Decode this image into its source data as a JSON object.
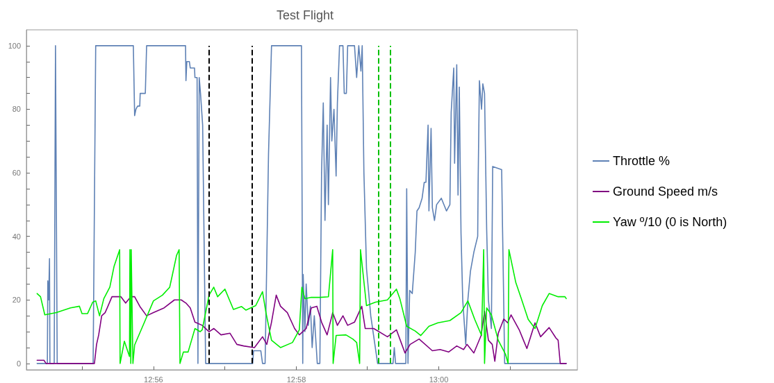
{
  "chart_data": {
    "type": "line",
    "title": "Test Flight",
    "xlim": [
      12.9036,
      13.0324
    ],
    "ylim": [
      -2,
      105
    ],
    "xticks": [
      {
        "value": 12.9167,
        "label": null
      },
      {
        "value": 12.9333,
        "label": "12:56"
      },
      {
        "value": 12.95,
        "label": null
      },
      {
        "value": 12.9667,
        "label": "12:58"
      },
      {
        "value": 12.9833,
        "label": null
      },
      {
        "value": 13.0,
        "label": "13:00"
      },
      {
        "value": 13.0167,
        "label": null
      }
    ],
    "yticks": [
      0,
      {
        "value": 5,
        "label": null
      },
      {
        "value": 10,
        "label": null
      },
      {
        "value": 15,
        "label": null
      },
      20,
      {
        "value": 25,
        "label": null
      },
      {
        "value": 30,
        "label": null
      },
      {
        "value": 35,
        "label": null
      },
      40,
      {
        "value": 45,
        "label": null
      },
      {
        "value": 50,
        "label": null
      },
      {
        "value": 55,
        "label": null
      },
      60,
      {
        "value": 65,
        "label": null
      },
      {
        "value": 70,
        "label": null
      },
      {
        "value": 75,
        "label": null
      },
      80,
      {
        "value": 85,
        "label": null
      },
      {
        "value": 90,
        "label": null
      },
      {
        "value": 95,
        "label": null
      },
      100
    ],
    "grid": false,
    "legend": "right",
    "marker": "none",
    "line_style": "solid",
    "ref_lines": [
      {
        "axis": "x",
        "value": 12.9463,
        "label": null,
        "color": "#000000",
        "line_style": "dashed"
      },
      {
        "axis": "x",
        "value": 12.9563,
        "label": null,
        "color": "#000000",
        "line_style": "dashed"
      },
      {
        "axis": "x",
        "value": 12.9859,
        "label": null,
        "color": "#00c000",
        "line_style": "dashed"
      },
      {
        "axis": "x",
        "value": 12.9886,
        "label": null,
        "color": "#00c000",
        "line_style": "dashed"
      }
    ],
    "series": [
      {
        "name": "Throttle %",
        "color": "#5e81b5",
        "x": [
          12.9061,
          12.9085,
          12.9086,
          12.9088,
          12.909,
          12.9091,
          12.9101,
          12.9104,
          12.9108,
          12.9192,
          12.9198,
          12.9286,
          12.9289,
          12.9292,
          12.9296,
          12.9301,
          12.9302,
          12.9314,
          12.9317,
          12.9408,
          12.9409,
          12.9411,
          12.9417,
          12.9419,
          12.9429,
          12.943,
          12.9435,
          12.9437,
          12.944,
          12.9443,
          12.9448,
          12.9455,
          12.9565,
          12.9567,
          12.9584,
          12.9588,
          12.9594,
          12.9602,
          12.9609,
          12.9679,
          12.9682,
          12.9683,
          12.9687,
          12.969,
          12.9695,
          12.97,
          12.9704,
          12.9709,
          12.9716,
          12.9722,
          12.9726,
          12.973,
          12.9734,
          12.9739,
          12.9742,
          12.9747,
          12.975,
          12.9755,
          12.976,
          12.9763,
          12.9768,
          12.9776,
          12.9779,
          12.9784,
          12.9787,
          12.9803,
          12.9808,
          12.9813,
          12.9818,
          12.9821,
          12.9825,
          12.9831,
          12.9841,
          12.9857,
          12.9893,
          12.9896,
          12.9899,
          12.9923,
          12.9925,
          12.9928,
          12.9932,
          12.9938,
          12.9945,
          12.9949,
          12.9954,
          12.9961,
          12.9966,
          12.997,
          12.9975,
          12.9977,
          12.9982,
          12.9985,
          12.999,
          12.9995,
          13.0006,
          13.0018,
          13.0026,
          13.0029,
          13.0035,
          13.0037,
          13.0042,
          13.0045,
          13.0048,
          13.0052,
          13.0056,
          13.0063,
          13.0068,
          13.0074,
          13.0082,
          13.0091,
          13.0092,
          13.0095,
          13.01,
          13.0103,
          13.0107,
          13.0112,
          13.0116,
          13.0123,
          13.0126,
          13.0147,
          13.0149,
          13.015,
          13.0154,
          13.0298
        ],
        "values": [
          0,
          0,
          26,
          20,
          33,
          0,
          0,
          100,
          0,
          0,
          100,
          100,
          78,
          80,
          81,
          81,
          85,
          85,
          100,
          100,
          89,
          95,
          95,
          93,
          93,
          90,
          90,
          0,
          90,
          85,
          75,
          0,
          0,
          4,
          4,
          0,
          0,
          66,
          100,
          100,
          0,
          28,
          10,
          25,
          12,
          18,
          5,
          15,
          0,
          0,
          60,
          82,
          45,
          75,
          50,
          90,
          70,
          80,
          59,
          82,
          100,
          100,
          85,
          85,
          100,
          100,
          90,
          100,
          92,
          100,
          60,
          30,
          15,
          0,
          0,
          5,
          0,
          0,
          55,
          0,
          23,
          22,
          35,
          48,
          49,
          52,
          57,
          57,
          75,
          48,
          74,
          49,
          45,
          50,
          52,
          48,
          50,
          79,
          93,
          63,
          94,
          53,
          87,
          41,
          20,
          6,
          20,
          29,
          35,
          40,
          57,
          89,
          80,
          88,
          85,
          42,
          20,
          11,
          62,
          61,
          43,
          35,
          0,
          0
        ]
      },
      {
        "name": "Ground Speed m/s",
        "color": "#800080",
        "x": [
          12.9061,
          12.9077,
          12.9082,
          12.9195,
          12.92,
          12.9205,
          12.9212,
          12.922,
          12.9225,
          12.9236,
          12.9257,
          12.9268,
          12.928,
          12.9289,
          12.9301,
          12.9317,
          12.9333,
          12.9358,
          12.9382,
          12.9398,
          12.9409,
          12.9419,
          12.943,
          12.9447,
          12.9463,
          12.9474,
          12.9491,
          12.9512,
          12.9528,
          12.9544,
          12.9569,
          12.9588,
          12.9598,
          12.9609,
          12.962,
          12.963,
          12.9646,
          12.9663,
          12.9674,
          12.969,
          12.9702,
          12.9715,
          12.9726,
          12.9739,
          12.9752,
          12.9763,
          12.9776,
          12.9787,
          12.9803,
          12.982,
          12.9828,
          12.9848,
          12.988,
          12.9901,
          12.9912,
          12.9921,
          12.9933,
          12.9954,
          12.9985,
          13.0003,
          13.0023,
          13.0042,
          13.0058,
          13.0066,
          13.0082,
          13.0099,
          13.0107,
          13.0116,
          13.0125,
          13.0131,
          13.0139,
          13.0152,
          13.0161,
          13.0169,
          13.0188,
          13.0198,
          13.0206,
          13.0225,
          13.0238,
          13.0258,
          13.0274,
          13.0279,
          13.0284,
          13.0298
        ],
        "values": [
          1,
          1,
          0,
          0,
          6,
          9,
          15,
          16,
          17.5,
          21,
          21,
          19,
          21,
          21,
          18,
          15,
          16,
          17.5,
          20,
          20,
          19,
          17.5,
          13,
          12,
          10,
          11,
          9,
          9.5,
          6,
          5.5,
          5,
          8.4,
          6,
          13,
          21.5,
          18,
          16,
          11,
          9,
          11,
          17.5,
          18,
          13,
          9,
          16,
          12,
          15,
          12,
          13,
          18,
          11,
          11,
          8.4,
          10.6,
          6.6,
          3.3,
          6,
          7.7,
          4,
          4.4,
          3.6,
          5.5,
          4.4,
          6,
          3.3,
          8.8,
          16.4,
          7.3,
          6,
          0.7,
          9.5,
          14,
          12.8,
          15.3,
          10.6,
          7.3,
          4.7,
          12.8,
          8.4,
          11.3,
          8,
          7.3,
          0,
          0
        ]
      },
      {
        "name": "Yaw º/10 (0 is North)",
        "color": "#00ee00",
        "x": [
          12.9061,
          12.9069,
          12.9079,
          12.9106,
          12.9139,
          12.916,
          12.9166,
          12.9179,
          12.9191,
          12.9198,
          12.9207,
          12.9217,
          12.9231,
          12.9241,
          12.9254,
          12.9255,
          12.9265,
          12.9277,
          12.9278,
          12.928,
          12.9281,
          12.9285,
          12.9289,
          12.9312,
          12.9333,
          12.9354,
          12.9371,
          12.9377,
          12.9387,
          12.9393,
          12.9395,
          12.9403,
          12.9414,
          12.943,
          12.9442,
          12.9447,
          12.9463,
          12.9474,
          12.9483,
          12.95,
          12.952,
          12.9539,
          12.9549,
          12.9572,
          12.9588,
          12.9596,
          12.9609,
          12.963,
          12.9658,
          12.9674,
          12.968,
          12.9687,
          12.9702,
          12.9722,
          12.9742,
          12.9752,
          12.9753,
          12.976,
          12.9783,
          12.9799,
          12.9808,
          12.9815,
          12.9817,
          12.9831,
          12.9852,
          12.988,
          12.9901,
          12.9909,
          12.9925,
          12.9945,
          12.9958,
          12.9977,
          12.9998,
          13.0026,
          13.0052,
          13.0068,
          13.0084,
          13.01,
          13.0105,
          13.0107,
          13.0112,
          13.0123,
          13.0139,
          13.0156,
          13.0162,
          13.0164,
          13.018,
          13.0193,
          13.0209,
          13.0225,
          13.0242,
          13.0258,
          13.0279,
          13.0295,
          13.0298
        ],
        "values": [
          22,
          21,
          15.3,
          16,
          17.5,
          18,
          15.7,
          15.7,
          19.3,
          19.7,
          15,
          20.4,
          24,
          30.6,
          35.8,
          0,
          7,
          2.2,
          35.8,
          0,
          35.8,
          0,
          5.8,
          13,
          19.7,
          21.5,
          24,
          27.7,
          34,
          35.8,
          0,
          3.6,
          3.6,
          11,
          10,
          10.6,
          21.5,
          24,
          21,
          23.4,
          17,
          17.9,
          16.8,
          18.2,
          22.6,
          16,
          7.3,
          5,
          6.6,
          10.6,
          24,
          20.4,
          20.8,
          20.8,
          21,
          35.8,
          0,
          8.8,
          9,
          7.7,
          6.6,
          0,
          35.8,
          18.2,
          19.3,
          20,
          23.4,
          20.4,
          11.7,
          10.2,
          8.8,
          11.7,
          12.8,
          13.5,
          16,
          19.7,
          13.9,
          8.8,
          35.8,
          0,
          17.5,
          15.3,
          7.3,
          2.9,
          0,
          35.8,
          25.5,
          20.4,
          13.9,
          11,
          18.2,
          22,
          21,
          21,
          20.4
        ]
      }
    ]
  }
}
